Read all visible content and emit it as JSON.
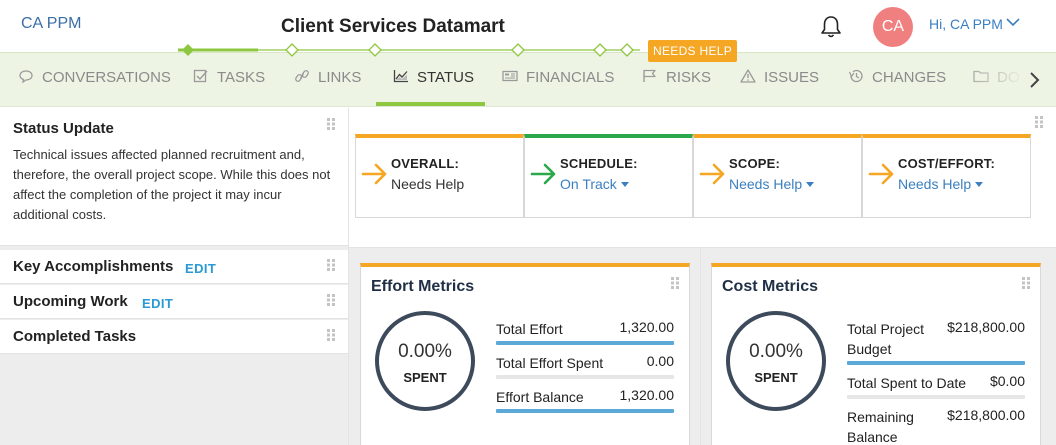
{
  "app": {
    "name": "CA PPM"
  },
  "project": {
    "title": "Client Services Datamart"
  },
  "user": {
    "initials": "CA",
    "greeting": "Hi, CA PPM"
  },
  "phase": {
    "badge": "NEEDS HELP"
  },
  "nav": {
    "tabs": [
      {
        "label": "CONVERSATIONS",
        "icon": "chat-icon"
      },
      {
        "label": "TASKS",
        "icon": "checkbox-icon"
      },
      {
        "label": "LINKS",
        "icon": "link-icon"
      },
      {
        "label": "STATUS",
        "icon": "chart-icon",
        "active": true
      },
      {
        "label": "FINANCIALS",
        "icon": "money-icon"
      },
      {
        "label": "RISKS",
        "icon": "flag-icon"
      },
      {
        "label": "ISSUES",
        "icon": "warning-icon"
      },
      {
        "label": "CHANGES",
        "icon": "history-icon"
      },
      {
        "label": "DO",
        "icon": "folder-icon"
      }
    ]
  },
  "status_update": {
    "title": "Status Update",
    "text": "Technical issues affected planned recruitment and, therefore, the overall project scope. While this does not affect the completion of the project it may incur additional costs."
  },
  "sections": {
    "key_accomplishments": {
      "title": "Key Accomplishments",
      "edit": "EDIT"
    },
    "upcoming_work": {
      "title": "Upcoming Work",
      "edit": "EDIT"
    },
    "completed_tasks": {
      "title": "Completed Tasks"
    }
  },
  "status_cards": [
    {
      "label": "OVERALL:",
      "value": "Needs Help",
      "color": "#f5a623",
      "dropdown": false
    },
    {
      "label": "SCHEDULE:",
      "value": "On Track",
      "color": "#2aa84a",
      "dropdown": true
    },
    {
      "label": "SCOPE:",
      "value": "Needs Help",
      "color": "#f5a623",
      "dropdown": true
    },
    {
      "label": "COST/EFFORT:",
      "value": "Needs Help",
      "color": "#f5a623",
      "dropdown": true
    }
  ],
  "effort_metrics": {
    "title": "Effort Metrics",
    "percent": "0.00%",
    "spent_label": "SPENT",
    "rows": [
      {
        "label": "Total Effort",
        "value": "1,320.00"
      },
      {
        "label": "Total Effort Spent",
        "value": "0.00"
      },
      {
        "label": "Effort Balance",
        "value": "1,320.00"
      }
    ]
  },
  "cost_metrics": {
    "title": "Cost Metrics",
    "percent": "0.00%",
    "spent_label": "SPENT",
    "rows": [
      {
        "label_line1": "Total Project",
        "label_line2": "Budget",
        "value": "$218,800.00"
      },
      {
        "label": "Total Spent to Date",
        "value": "$0.00"
      },
      {
        "label_line1": "Remaining",
        "label_line2": "Balance",
        "value": "$218,800.00"
      }
    ]
  },
  "colors": {
    "accent": "#8dc63f",
    "warning": "#f5a623",
    "ok": "#2aa84a",
    "link": "#3a7fc1"
  }
}
